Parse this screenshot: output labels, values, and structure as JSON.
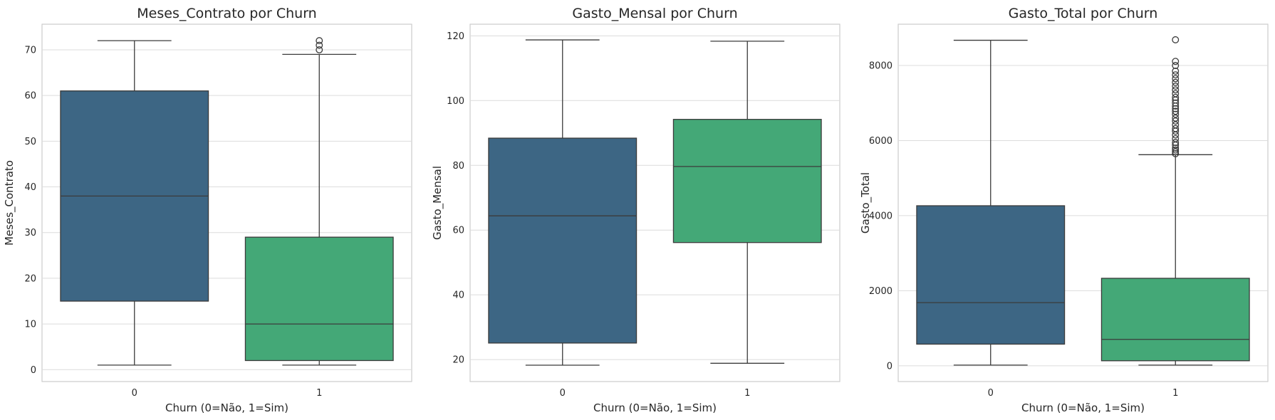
{
  "colors": {
    "churn_0": "#3d6684",
    "churn_1": "#44a877",
    "line": "#3b3b3b",
    "grid": "#dcdcdc"
  },
  "chart_data": [
    {
      "type": "box",
      "title": "Meses_Contrato por Churn",
      "xlabel": "Churn (0=Não, 1=Sim)",
      "ylabel": "Meses_Contrato",
      "categories": [
        "0",
        "1"
      ],
      "ylim": [
        -2.6,
        75.6
      ],
      "yticks": [
        0,
        10,
        20,
        30,
        40,
        50,
        60,
        70
      ],
      "grid": true,
      "boxes": [
        {
          "min": 1,
          "q1": 15,
          "median": 38,
          "q3": 61,
          "max": 72,
          "fliers": []
        },
        {
          "min": 1,
          "q1": 2,
          "median": 10,
          "q3": 29,
          "max": 69,
          "fliers": [
            70,
            71,
            72
          ]
        }
      ]
    },
    {
      "type": "box",
      "title": "Gasto_Mensal por Churn",
      "xlabel": "Churn (0=Não, 1=Sim)",
      "ylabel": "Gasto_Mensal",
      "categories": [
        "0",
        "1"
      ],
      "ylim": [
        13.2,
        123.6
      ],
      "yticks": [
        20,
        40,
        60,
        80,
        100,
        120
      ],
      "grid": true,
      "boxes": [
        {
          "min": 18.25,
          "q1": 25.1,
          "median": 64.4,
          "q3": 88.4,
          "max": 118.75,
          "fliers": []
        },
        {
          "min": 18.85,
          "q1": 56.15,
          "median": 79.65,
          "q3": 94.2,
          "max": 118.35,
          "fliers": []
        }
      ]
    },
    {
      "type": "box",
      "title": "Gasto_Total por Churn",
      "xlabel": "Churn (0=Não, 1=Sim)",
      "ylabel": "Gasto_Total",
      "categories": [
        "0",
        "1"
      ],
      "ylim": [
        -420,
        9100
      ],
      "yticks": [
        0,
        2000,
        4000,
        6000,
        8000
      ],
      "grid": true,
      "boxes": [
        {
          "min": 18.8,
          "q1": 577,
          "median": 1683,
          "q3": 4264,
          "max": 8672,
          "fliers": []
        },
        {
          "min": 18.85,
          "q1": 134,
          "median": 704,
          "q3": 2331,
          "max": 5624,
          "fliers": [
            5650,
            5700,
            5750,
            5800,
            5880,
            5950,
            6050,
            6150,
            6250,
            6320,
            6420,
            6520,
            6600,
            6700,
            6780,
            6850,
            6920,
            7000,
            7080,
            7150,
            7250,
            7350,
            7450,
            7550,
            7650,
            7750,
            7850,
            8000,
            8110,
            8685
          ]
        }
      ]
    }
  ]
}
